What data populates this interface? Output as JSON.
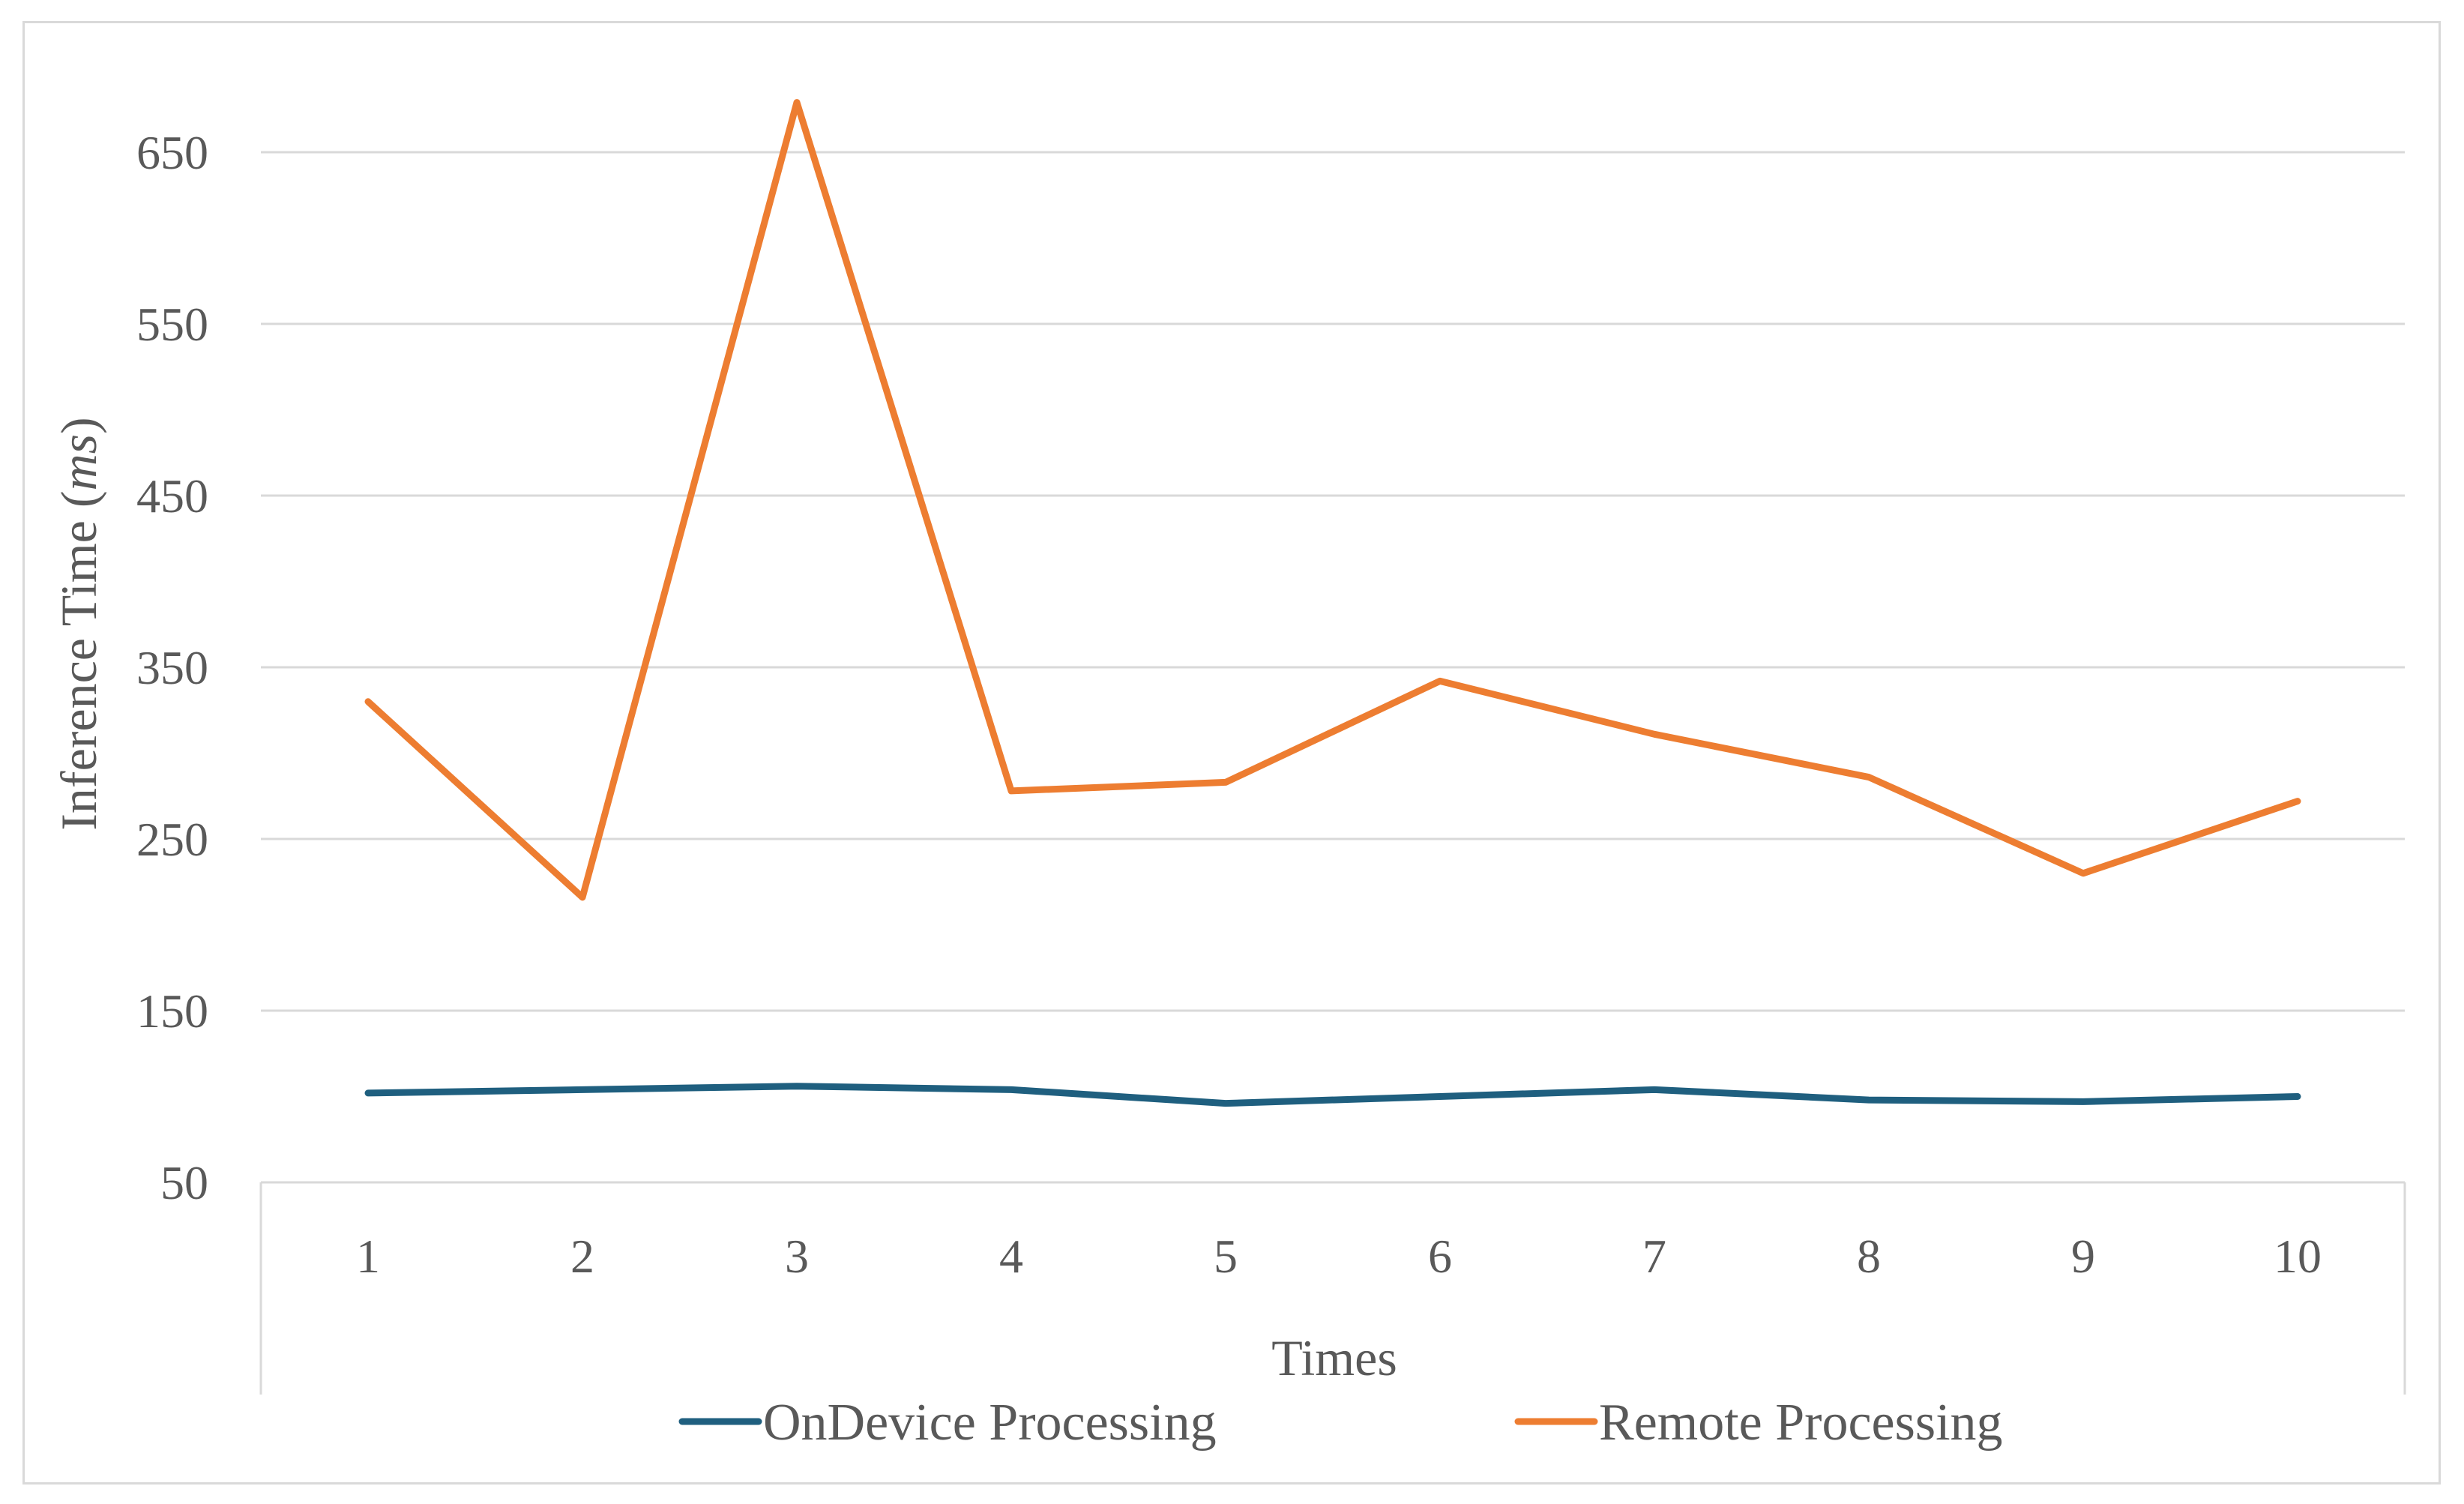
{
  "chart_data": {
    "type": "line",
    "x": [
      1,
      2,
      3,
      4,
      5,
      6,
      7,
      8,
      9,
      10
    ],
    "series": [
      {
        "name": "OnDevice Processing",
        "color": "#1f5f7f",
        "values": [
          102,
          104,
          106,
          104,
          96,
          100,
          104,
          98,
          97,
          100
        ]
      },
      {
        "name": "Remote Processing",
        "color": "#ed7d31",
        "values": [
          330,
          216,
          679,
          278,
          283,
          342,
          311,
          286,
          230,
          272
        ]
      }
    ],
    "title": "",
    "xlabel": "Times",
    "ylabel_main": "Inference Time (",
    "ylabel_unit": "ms",
    "ylabel_close": ")",
    "ylim": [
      50,
      700
    ],
    "yticks": [
      50,
      150,
      250,
      350,
      450,
      550,
      650
    ],
    "grid": true,
    "legend": "bottom"
  }
}
